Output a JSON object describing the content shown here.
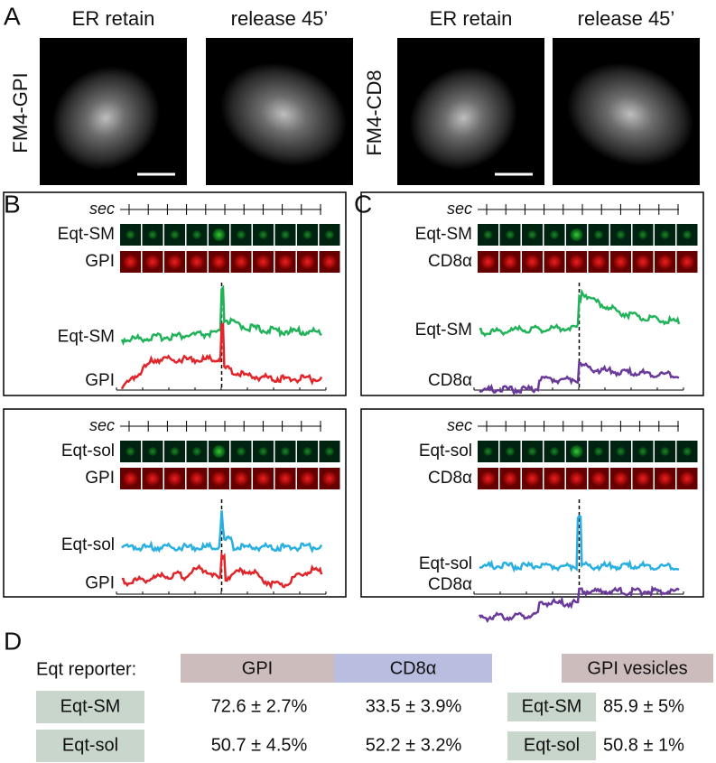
{
  "letters": [
    "A",
    "B",
    "C",
    "D"
  ],
  "panel_a": {
    "images": [
      {
        "title": "ER retain"
      },
      {
        "title": "release 45’"
      },
      {
        "title": "ER retain"
      },
      {
        "title": "release 45’"
      }
    ],
    "row_labels": [
      "FM4-GPI",
      "FM4-CD8"
    ]
  },
  "panels": [
    {
      "axis_label": "sec",
      "tile_labels": [
        "Eqt-SM",
        "GPI"
      ],
      "trace_labels": [
        "Eqt-SM",
        "GPI"
      ]
    },
    {
      "axis_label": "sec",
      "tile_labels": [
        "Eqt-sol",
        "GPI"
      ],
      "trace_labels": [
        "Eqt-sol",
        "GPI"
      ]
    },
    {
      "axis_label": "sec",
      "tile_labels": [
        "Eqt-SM",
        "CD8α"
      ],
      "trace_labels": [
        "Eqt-SM",
        "CD8α"
      ]
    },
    {
      "axis_label": "sec",
      "tile_labels": [
        "Eqt-sol",
        "CD8α"
      ],
      "trace_labels": [
        "Eqt-sol",
        "CD8α"
      ]
    }
  ],
  "table": {
    "caption": "Eqt reporter:",
    "headers": [
      "GPI",
      "CD8α",
      "GPI vesicles"
    ],
    "rows": [
      {
        "label": "Eqt-SM",
        "cells": [
          "72.6 ± 2.7%",
          "33.5 ±  3.9%"
        ],
        "vesicle_label": "Eqt-SM",
        "vesicle_value": "85.9 ± 5%"
      },
      {
        "label": "Eqt-sol",
        "cells": [
          "50.7 ± 4.5%",
          "52.2 ± 3.2%"
        ],
        "vesicle_label": "Eqt-sol",
        "vesicle_value": "50.8 ± 1%"
      }
    ]
  }
}
